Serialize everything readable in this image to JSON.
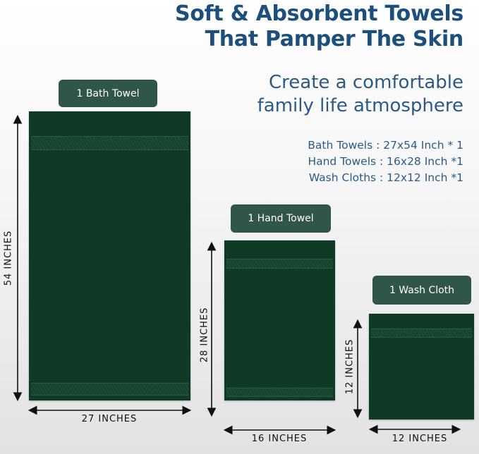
{
  "header": {
    "title_line1": "Soft & Absorbent Towels",
    "title_line2": "That Pamper The Skin",
    "subtitle_line1": "Create a comfortable",
    "subtitle_line2": "family life atmosphere"
  },
  "specs": [
    "Bath Towels : 27x54 Inch * 1",
    "Hand Towels : 16x28 Inch *1",
    "Wash Cloths : 12x12 Inch *1"
  ],
  "towels": {
    "bath": {
      "label": "1 Bath Towel",
      "height": "54 INCHES",
      "width": "27 INCHES"
    },
    "hand": {
      "label": "1 Hand Towel",
      "height": "28 INCHES",
      "width": "16 INCHES"
    },
    "wash": {
      "label": "1 Wash Cloth",
      "height": "12 INCHES",
      "width": "12 INCHES"
    }
  },
  "colors": {
    "title": "#1d4f7c",
    "towel": "#0f3b26",
    "label_bg": "#2f5646"
  }
}
